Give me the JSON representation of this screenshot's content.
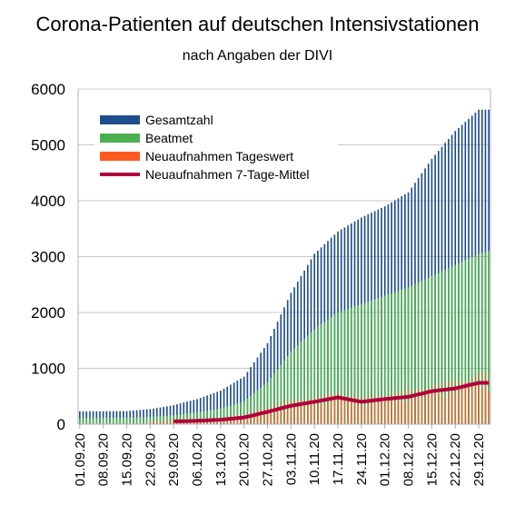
{
  "chart_data": {
    "type": "bar",
    "title": "Corona-Patienten auf deutschen Intensivstationen",
    "subtitle": "nach Angaben der DIVI",
    "x_ticks": [
      "01.09.20",
      "08.09.20",
      "15.09.20",
      "22.09.20",
      "29.09.20",
      "06.10.20",
      "13.10.20",
      "20.10.20",
      "27.10.20",
      "03.11.20",
      "10.11.20",
      "17.11.20",
      "24.11.20",
      "01.12.20",
      "08.12.20",
      "15.12.20",
      "22.12.20",
      "29.12.20"
    ],
    "y_ticks": [
      0,
      1000,
      2000,
      3000,
      4000,
      5000,
      6000
    ],
    "ylim": [
      0,
      6000
    ],
    "grid": "horizontal",
    "legend_position": "top-left",
    "colors": {
      "gesamtzahl": "#1f4e8c",
      "beatmet": "#4caf50",
      "neuaufnahmen_tageswert": "#ff5a1f",
      "neuaufnahmen_mittel": "#b0003a"
    },
    "series": [
      {
        "name": "Gesamtzahl",
        "anchors": [
          [
            "2020-09-01",
            230
          ],
          [
            "2020-09-15",
            235
          ],
          [
            "2020-09-22",
            270
          ],
          [
            "2020-09-29",
            340
          ],
          [
            "2020-10-06",
            450
          ],
          [
            "2020-10-13",
            600
          ],
          [
            "2020-10-20",
            850
          ],
          [
            "2020-10-27",
            1450
          ],
          [
            "2020-11-03",
            2350
          ],
          [
            "2020-11-10",
            3050
          ],
          [
            "2020-11-17",
            3450
          ],
          [
            "2020-11-24",
            3700
          ],
          [
            "2020-12-01",
            3900
          ],
          [
            "2020-12-08",
            4150
          ],
          [
            "2020-12-15",
            4750
          ],
          [
            "2020-12-22",
            5250
          ],
          [
            "2020-12-29",
            5630
          ],
          [
            "2021-01-01",
            5630
          ]
        ]
      },
      {
        "name": "Beatmet",
        "anchors": [
          [
            "2020-09-01",
            110
          ],
          [
            "2020-09-15",
            115
          ],
          [
            "2020-09-22",
            130
          ],
          [
            "2020-09-29",
            160
          ],
          [
            "2020-10-06",
            210
          ],
          [
            "2020-10-13",
            280
          ],
          [
            "2020-10-20",
            410
          ],
          [
            "2020-10-27",
            750
          ],
          [
            "2020-11-03",
            1300
          ],
          [
            "2020-11-10",
            1700
          ],
          [
            "2020-11-17",
            2000
          ],
          [
            "2020-11-24",
            2150
          ],
          [
            "2020-12-01",
            2300
          ],
          [
            "2020-12-08",
            2450
          ],
          [
            "2020-12-15",
            2650
          ],
          [
            "2020-12-22",
            2850
          ],
          [
            "2020-12-29",
            3050
          ],
          [
            "2021-01-01",
            3100
          ]
        ]
      },
      {
        "name": "Neuaufnahmen Tageswert",
        "anchors": [
          [
            "2020-09-22",
            40
          ],
          [
            "2020-09-29",
            60
          ],
          [
            "2020-10-06",
            80
          ],
          [
            "2020-10-13",
            100
          ],
          [
            "2020-10-20",
            150
          ],
          [
            "2020-10-27",
            260
          ],
          [
            "2020-11-03",
            360
          ],
          [
            "2020-11-10",
            400
          ],
          [
            "2020-11-17",
            470
          ],
          [
            "2020-11-24",
            400
          ],
          [
            "2020-12-01",
            450
          ],
          [
            "2020-12-08",
            500
          ],
          [
            "2020-12-15",
            580
          ],
          [
            "2020-12-22",
            640
          ],
          [
            "2020-12-29",
            750
          ],
          [
            "2021-01-01",
            750
          ]
        ]
      },
      {
        "name": "Neuaufnahmen 7-Tage-Mittel",
        "anchors": [
          [
            "2020-09-29",
            50
          ],
          [
            "2020-10-06",
            60
          ],
          [
            "2020-10-13",
            80
          ],
          [
            "2020-10-20",
            120
          ],
          [
            "2020-10-27",
            220
          ],
          [
            "2020-11-03",
            330
          ],
          [
            "2020-11-10",
            400
          ],
          [
            "2020-11-17",
            480
          ],
          [
            "2020-11-24",
            400
          ],
          [
            "2020-12-01",
            450
          ],
          [
            "2020-12-08",
            490
          ],
          [
            "2020-12-15",
            590
          ],
          [
            "2020-12-22",
            640
          ],
          [
            "2020-12-29",
            740
          ],
          [
            "2021-01-01",
            740
          ]
        ]
      }
    ]
  }
}
